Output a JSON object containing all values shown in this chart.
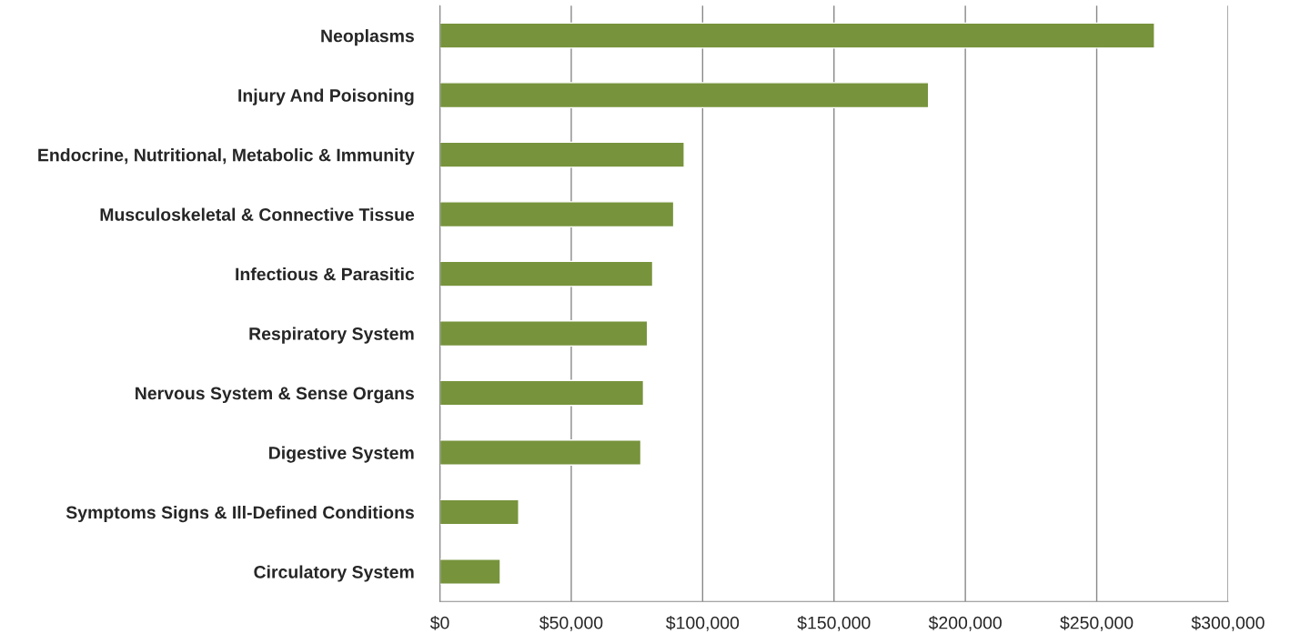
{
  "chart_data": {
    "type": "bar",
    "orientation": "horizontal",
    "categories": [
      "Neoplasms",
      "Injury And Poisoning",
      "Endocrine, Nutritional, Metabolic & Immunity",
      "Musculoskeletal & Connective Tissue",
      "Infectious & Parasitic",
      "Respiratory System",
      "Nervous System & Sense Organs",
      "Digestive System",
      "Symptoms Signs & Ill-Defined Conditions",
      "Circulatory System"
    ],
    "values": [
      272000,
      186000,
      93000,
      89000,
      81000,
      79000,
      77500,
      76500,
      30000,
      23000
    ],
    "color": "#77933c",
    "xlim": [
      0,
      300000
    ],
    "xticks": [
      {
        "value": 0,
        "label": "$0"
      },
      {
        "value": 50000,
        "label": "$50,000"
      },
      {
        "value": 100000,
        "label": "$100,000"
      },
      {
        "value": 150000,
        "label": "$150,000"
      },
      {
        "value": 200000,
        "label": "$200,000"
      },
      {
        "value": 250000,
        "label": "$250,000"
      },
      {
        "value": 300000,
        "label": "$300,000"
      }
    ],
    "grid": "x",
    "legend": false
  }
}
